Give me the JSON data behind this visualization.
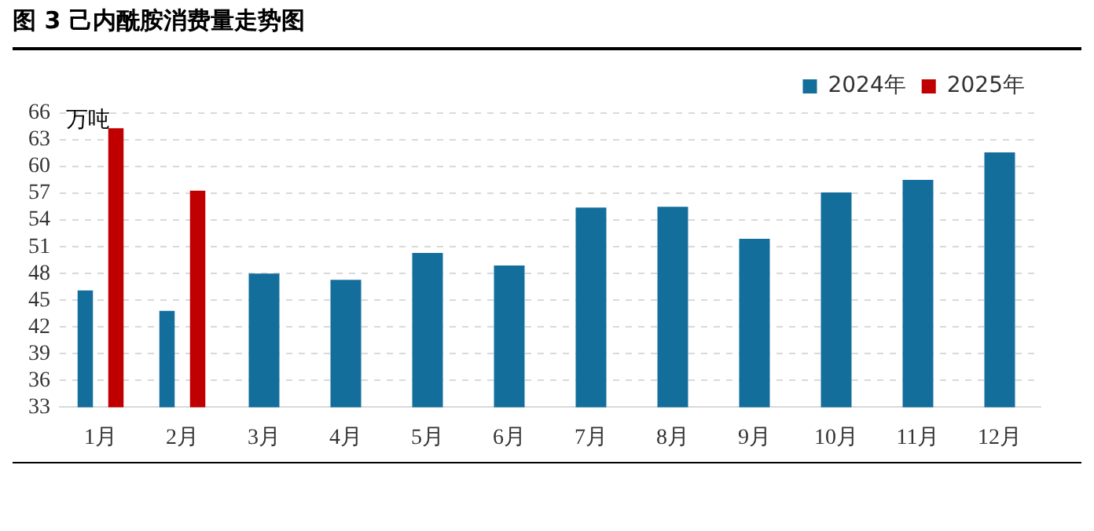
{
  "chart_data": {
    "type": "bar",
    "title": "图 3 己内酰胺消费量走势图",
    "ylabel": "万吨",
    "categories": [
      "1月",
      "2月",
      "3月",
      "4月",
      "5月",
      "6月",
      "7月",
      "8月",
      "9月",
      "10月",
      "11月",
      "12月"
    ],
    "series": [
      {
        "name": "2024年",
        "color": "#136e9c",
        "values": [
          46.1,
          43.8,
          48.0,
          47.3,
          50.3,
          48.9,
          55.4,
          55.5,
          51.9,
          57.1,
          58.5,
          61.6
        ]
      },
      {
        "name": "2025年",
        "color": "#c00000",
        "values": [
          64.3,
          57.3,
          null,
          null,
          null,
          null,
          null,
          null,
          null,
          null,
          null,
          null
        ]
      }
    ],
    "ylim": [
      33,
      66
    ],
    "yticks": [
      33,
      36,
      39,
      42,
      45,
      48,
      51,
      54,
      57,
      60,
      63,
      66
    ],
    "grid": "y",
    "legend": "top right"
  }
}
